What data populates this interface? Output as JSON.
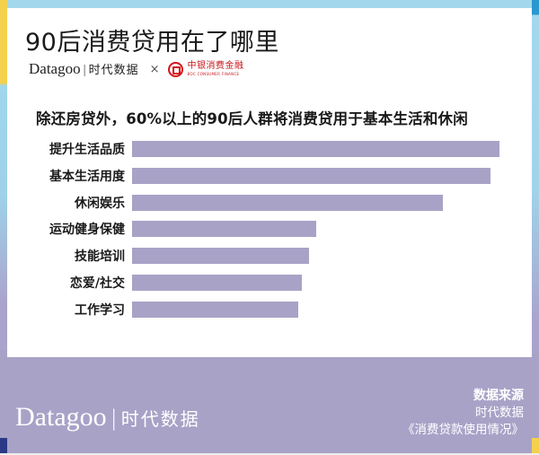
{
  "header": {
    "title": "90后消费贷用在了哪里",
    "logo_brand": "Datagoo",
    "logo_brand_cn": "时代数据",
    "logo_separator": "|",
    "collab_symbol": "×",
    "partner_logo_cn": "中银消费金融",
    "partner_logo_en": "BOC CONSUMER FINANCE"
  },
  "chart_data": {
    "type": "bar",
    "orientation": "horizontal",
    "title": "除还房贷外，60%以上的90后人群将消费贷用于基本生活和休闲",
    "xlabel": "",
    "ylabel": "",
    "grid": false,
    "legend": null,
    "value_labels_shown": false,
    "categories": [
      "提升生活品质",
      "基本生活用度",
      "休闲娱乐",
      "运动健身保健",
      "技能培训",
      "恋爱/社交",
      "工作学习"
    ],
    "values": [
      409,
      399,
      346,
      205,
      197,
      189,
      185
    ],
    "value_units": "relative bar length (px, no axis shown)",
    "xlim": [
      0,
      409
    ],
    "bar_color": "#a9a2c7"
  },
  "footer": {
    "brand_en": "Datagoo",
    "brand_separator": "|",
    "brand_cn": "时代数据",
    "source_label": "数据来源",
    "source_org": "时代数据",
    "source_report": "《消费贷款使用情况》"
  },
  "colors": {
    "accent_purple": "#a9a2c7",
    "frame_blue": "#a3d8ec",
    "frame_yellow": "#f3d14d",
    "frame_dark_blue": "#2b3a86",
    "partner_red": "#d7141a"
  }
}
